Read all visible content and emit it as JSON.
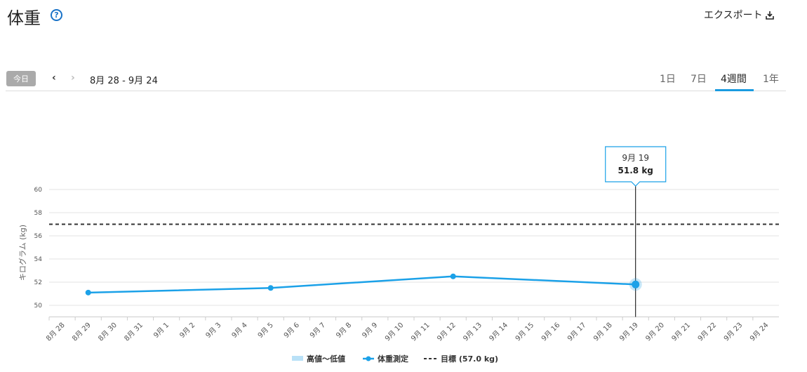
{
  "header": {
    "title": "体重",
    "help": "?",
    "export": "エクスポート"
  },
  "nav": {
    "today": "今日",
    "range": "8月 28 - 9月 24",
    "tabs": [
      "1日",
      "7日",
      "4週間",
      "1年"
    ]
  },
  "chart_data": {
    "type": "line",
    "y_label": "キログラム (kg)",
    "categories": [
      "8月 28",
      "8月 29",
      "8月 30",
      "8月 31",
      "9月 1",
      "9月 2",
      "9月 3",
      "9月 4",
      "9月 5",
      "9月 6",
      "9月 7",
      "9月 8",
      "9月 9",
      "9月 10",
      "9月 11",
      "9月 12",
      "9月 13",
      "9月 14",
      "9月 15",
      "9月 16",
      "9月 17",
      "9月 18",
      "9月 19",
      "9月 20",
      "9月 21",
      "9月 22",
      "9月 23",
      "9月 24"
    ],
    "ylim": [
      49,
      60
    ],
    "yticks": [
      50,
      52,
      54,
      56,
      58,
      60
    ],
    "grid": true,
    "range_legend": {
      "name": "高値～低値",
      "color": "#b9e1f7"
    },
    "series": [
      {
        "name": "体重測定",
        "color": "#1ba1e8",
        "x": [
          "8月 29",
          "9月 5",
          "9月 12",
          "9月 19"
        ],
        "values": [
          51.1,
          51.5,
          52.5,
          51.8
        ]
      }
    ],
    "goal": {
      "name": "目標 (57.0 kg)",
      "value": 57,
      "color": "#333333"
    },
    "tooltip": {
      "date": "9月 19",
      "label": "51.8 kg"
    }
  }
}
